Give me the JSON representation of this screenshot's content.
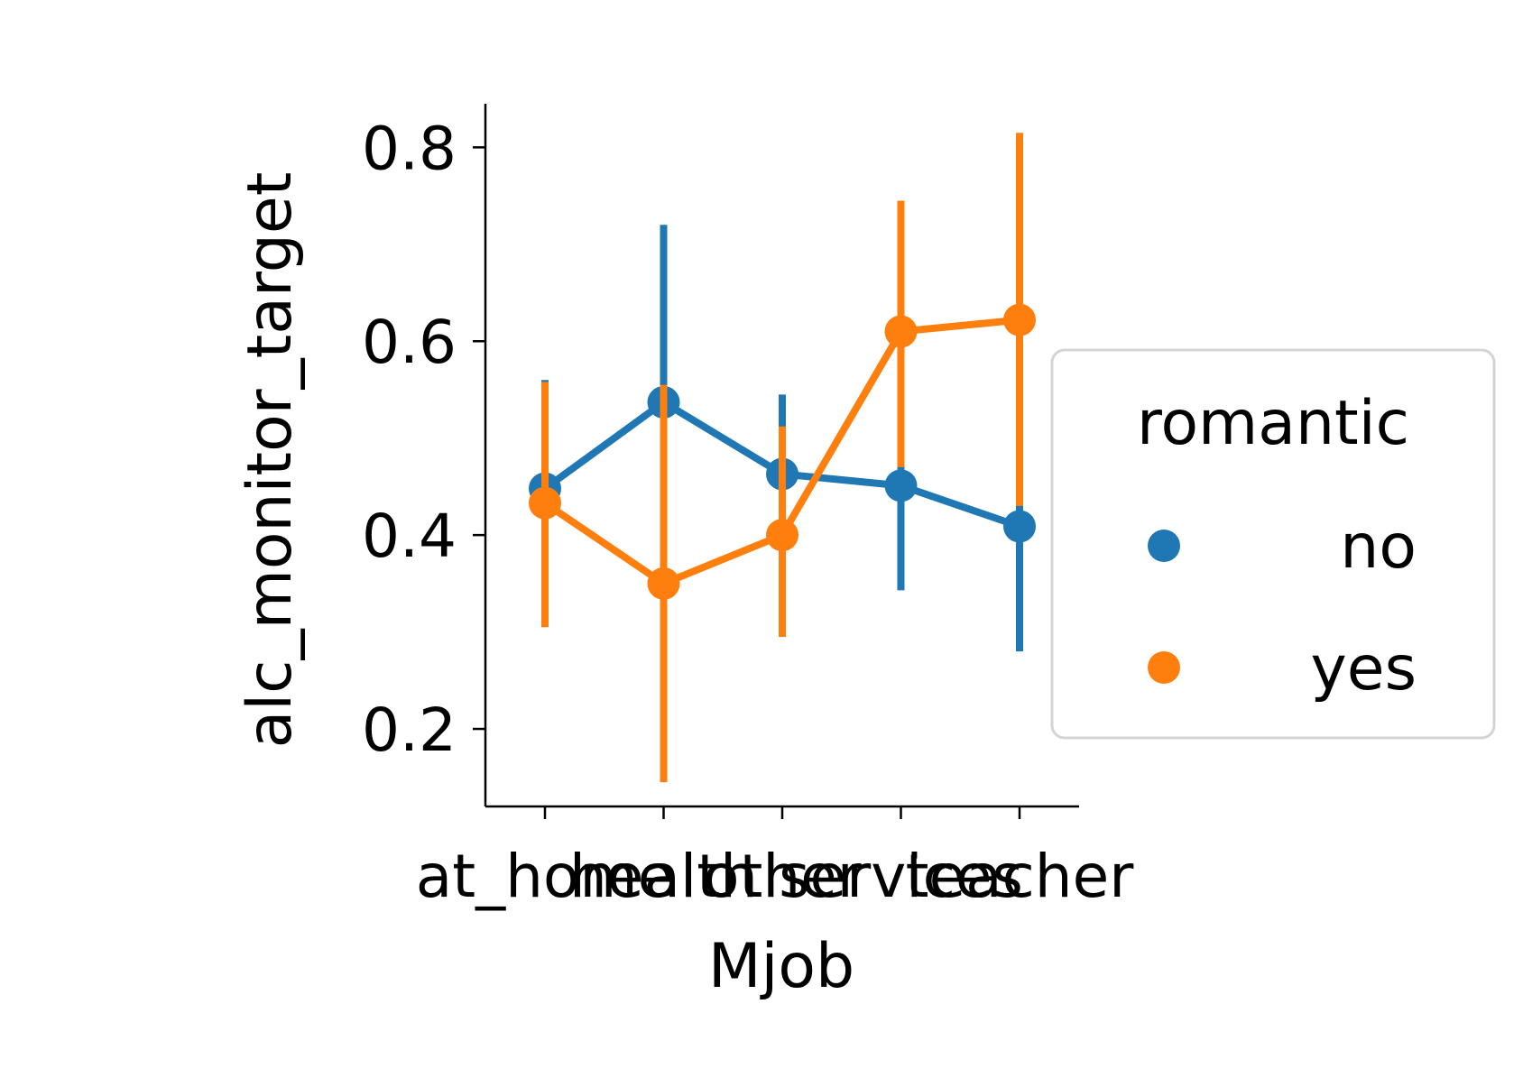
{
  "chart_data": {
    "type": "line",
    "xlabel": "Mjob",
    "ylabel": "alc_monitor_target",
    "categories": [
      "at_home",
      "health",
      "other",
      "services",
      "teacher"
    ],
    "ylim": [
      0.12,
      0.845
    ],
    "yticks": [
      "0.2",
      "0.4",
      "0.6",
      "0.8"
    ],
    "legend": {
      "title": "romantic",
      "placement": "right"
    },
    "series": [
      {
        "name": "no",
        "color": "#1f77b4",
        "values": [
          0.448,
          0.537,
          0.463,
          0.451,
          0.409
        ],
        "ci_low": [
          0.333,
          0.355,
          0.378,
          0.343,
          0.28
        ],
        "ci_high": [
          0.56,
          0.72,
          0.545,
          0.57,
          0.555
        ]
      },
      {
        "name": "yes",
        "color": "#ff7f0e",
        "values": [
          0.433,
          0.35,
          0.4,
          0.61,
          0.622
        ],
        "ci_low": [
          0.305,
          0.145,
          0.295,
          0.47,
          0.43
        ],
        "ci_high": [
          0.558,
          0.555,
          0.512,
          0.745,
          0.815
        ]
      }
    ]
  }
}
